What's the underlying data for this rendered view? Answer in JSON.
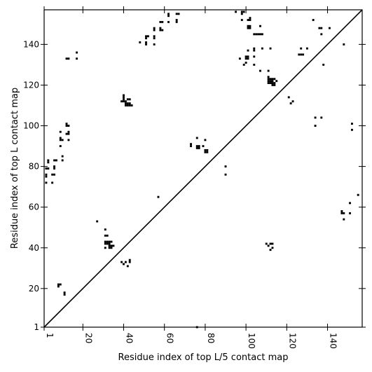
{
  "chart_data": {
    "type": "scatter",
    "xlabel": "Residue index of top L/5 contact map",
    "ylabel": "Residue index of top L contact map",
    "xlim": [
      1,
      157
    ],
    "ylim": [
      1,
      157
    ],
    "xticks": [
      1,
      20,
      40,
      60,
      80,
      100,
      120,
      140
    ],
    "yticks": [
      1,
      20,
      40,
      60,
      80,
      100,
      120,
      140
    ],
    "grid": false,
    "diagonal": true,
    "marker_color": "#000000",
    "x_tick_rotation": 90,
    "series": [
      {
        "points": [
          [
            76,
            1
          ],
          [
            11,
            17
          ],
          [
            11,
            18
          ],
          [
            8,
            21
          ],
          [
            9,
            22
          ],
          [
            8,
            22
          ],
          [
            40,
            32
          ],
          [
            41,
            33
          ],
          [
            42,
            31
          ],
          [
            43,
            33
          ],
          [
            43,
            34
          ],
          [
            39,
            33
          ],
          [
            31,
            40
          ],
          [
            33,
            40
          ],
          [
            34,
            40
          ],
          [
            33,
            41
          ],
          [
            34,
            41
          ],
          [
            35,
            41
          ],
          [
            31,
            42
          ],
          [
            32,
            42
          ],
          [
            33,
            42
          ],
          [
            31,
            43
          ],
          [
            32,
            43
          ],
          [
            33,
            43
          ],
          [
            34,
            43
          ],
          [
            31,
            46
          ],
          [
            32,
            46
          ],
          [
            31,
            49
          ],
          [
            27,
            53
          ],
          [
            112,
            39
          ],
          [
            113,
            40
          ],
          [
            111,
            41
          ],
          [
            112,
            42
          ],
          [
            110,
            42
          ],
          [
            113,
            42
          ],
          [
            148,
            54
          ],
          [
            147,
            57
          ],
          [
            148,
            57
          ],
          [
            151,
            57
          ],
          [
            147,
            58
          ],
          [
            151,
            62
          ],
          [
            155,
            66
          ],
          [
            57,
            65
          ],
          [
            2,
            72
          ],
          [
            5,
            72
          ],
          [
            2,
            75
          ],
          [
            2,
            76
          ],
          [
            5,
            76
          ],
          [
            6,
            76
          ],
          [
            2,
            79
          ],
          [
            3,
            79
          ],
          [
            6,
            79
          ],
          [
            6,
            80
          ],
          [
            3,
            82
          ],
          [
            3,
            83
          ],
          [
            6,
            83
          ],
          [
            7,
            83
          ],
          [
            10,
            83
          ],
          [
            10,
            85
          ],
          [
            90,
            76
          ],
          [
            90,
            80
          ],
          [
            9,
            90
          ],
          [
            9,
            93
          ],
          [
            10,
            93
          ],
          [
            9,
            94
          ],
          [
            13,
            93
          ],
          [
            9,
            97
          ],
          [
            12,
            96
          ],
          [
            13,
            96
          ],
          [
            13,
            97
          ],
          [
            12,
            100
          ],
          [
            13,
            100
          ],
          [
            12,
            101
          ],
          [
            73,
            90
          ],
          [
            73,
            91
          ],
          [
            76,
            89
          ],
          [
            77,
            89
          ],
          [
            76,
            90
          ],
          [
            77,
            90
          ],
          [
            79,
            90
          ],
          [
            76,
            94
          ],
          [
            80,
            87
          ],
          [
            81,
            87
          ],
          [
            80,
            88
          ],
          [
            81,
            88
          ],
          [
            80,
            93
          ],
          [
            134,
            100
          ],
          [
            134,
            104
          ],
          [
            137,
            104
          ],
          [
            152,
            98
          ],
          [
            152,
            101
          ],
          [
            39,
            112
          ],
          [
            40,
            112
          ],
          [
            41,
            112
          ],
          [
            40,
            113
          ],
          [
            42,
            113
          ],
          [
            43,
            113
          ],
          [
            40,
            114
          ],
          [
            40,
            115
          ],
          [
            41,
            110
          ],
          [
            42,
            110
          ],
          [
            43,
            110
          ],
          [
            44,
            110
          ],
          [
            41,
            111
          ],
          [
            42,
            111
          ],
          [
            43,
            111
          ],
          [
            121,
            114
          ],
          [
            122,
            111
          ],
          [
            123,
            112
          ],
          [
            111,
            121
          ],
          [
            112,
            121
          ],
          [
            113,
            121
          ],
          [
            114,
            121
          ],
          [
            111,
            122
          ],
          [
            112,
            122
          ],
          [
            113,
            122
          ],
          [
            111,
            123
          ],
          [
            112,
            123
          ],
          [
            113,
            123
          ],
          [
            114,
            123
          ],
          [
            111,
            124
          ],
          [
            115,
            122
          ],
          [
            113,
            120
          ],
          [
            114,
            120
          ],
          [
            107,
            127
          ],
          [
            111,
            127
          ],
          [
            99,
            130
          ],
          [
            104,
            130
          ],
          [
            138,
            130
          ],
          [
            100,
            131
          ],
          [
            97,
            133
          ],
          [
            100,
            133
          ],
          [
            101,
            133
          ],
          [
            100,
            134
          ],
          [
            101,
            134
          ],
          [
            104,
            134
          ],
          [
            126,
            135
          ],
          [
            127,
            135
          ],
          [
            128,
            135
          ],
          [
            12,
            133
          ],
          [
            13,
            133
          ],
          [
            17,
            133
          ],
          [
            17,
            136
          ],
          [
            48,
            141
          ],
          [
            51,
            140
          ],
          [
            51,
            141
          ],
          [
            55,
            140
          ],
          [
            51,
            143
          ],
          [
            55,
            143
          ],
          [
            51,
            144
          ],
          [
            52,
            144
          ],
          [
            55,
            144
          ],
          [
            55,
            147
          ],
          [
            55,
            148
          ],
          [
            58,
            147
          ],
          [
            58,
            148
          ],
          [
            59,
            147
          ],
          [
            58,
            151
          ],
          [
            59,
            151
          ],
          [
            62,
            151
          ],
          [
            66,
            151
          ],
          [
            66,
            152
          ],
          [
            62,
            154
          ],
          [
            62,
            155
          ],
          [
            66,
            155
          ],
          [
            67,
            155
          ],
          [
            95,
            156
          ],
          [
            98,
            155
          ],
          [
            99,
            156
          ],
          [
            98,
            156
          ],
          [
            98,
            152
          ],
          [
            101,
            152
          ],
          [
            102,
            152
          ],
          [
            102,
            153
          ],
          [
            101,
            149
          ],
          [
            102,
            149
          ],
          [
            101,
            148
          ],
          [
            102,
            148
          ],
          [
            107,
            149
          ],
          [
            104,
            145
          ],
          [
            105,
            145
          ],
          [
            106,
            145
          ],
          [
            107,
            145
          ],
          [
            108,
            145
          ],
          [
            101,
            137
          ],
          [
            104,
            137
          ],
          [
            104,
            138
          ],
          [
            108,
            138
          ],
          [
            112,
            138
          ],
          [
            133,
            152
          ],
          [
            136,
            148
          ],
          [
            137,
            148
          ],
          [
            137,
            145
          ],
          [
            141,
            148
          ],
          [
            127,
            138
          ],
          [
            130,
            138
          ],
          [
            148,
            140
          ]
        ]
      }
    ]
  }
}
